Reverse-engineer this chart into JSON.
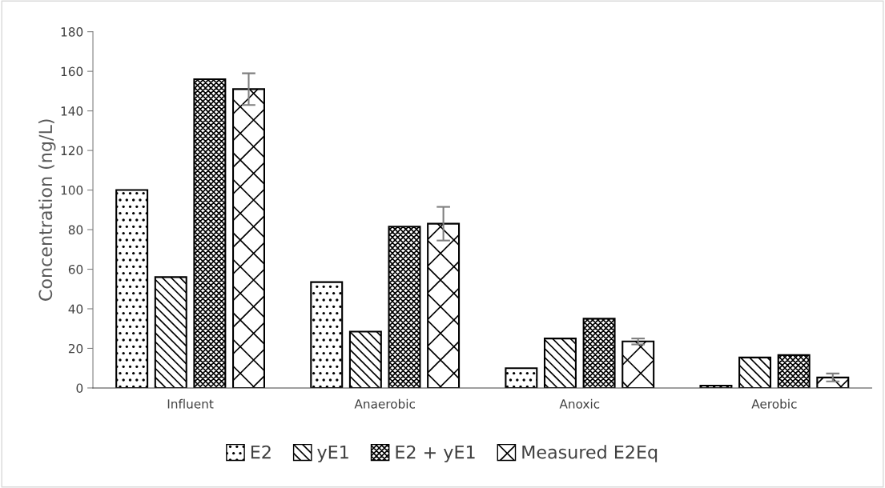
{
  "chart_data": {
    "type": "bar",
    "ylabel": "Concentration (ng/L)",
    "categories": [
      "Influent",
      "Anaerobic",
      "Anoxic",
      "Aerobic"
    ],
    "series": [
      {
        "name": "E2",
        "color": "#000000",
        "values": [
          100,
          53.5,
          10,
          1.2
        ]
      },
      {
        "name": "yE1",
        "color": "#000000",
        "values": [
          56,
          28.5,
          25,
          15.4
        ]
      },
      {
        "name": "E2 + yE1",
        "color": "#000000",
        "values": [
          156,
          81.5,
          35,
          16.6
        ]
      },
      {
        "name": "Measured E2Eq",
        "color": "#000000",
        "values": [
          151,
          83,
          23.5,
          5.3
        ],
        "errors": [
          8,
          8.5,
          1.5,
          2
        ]
      }
    ],
    "ylim": [
      0,
      180
    ],
    "yticks": [
      0,
      20,
      40,
      60,
      80,
      100,
      120,
      140,
      160,
      180
    ],
    "grid": false,
    "legend": "bottom"
  }
}
